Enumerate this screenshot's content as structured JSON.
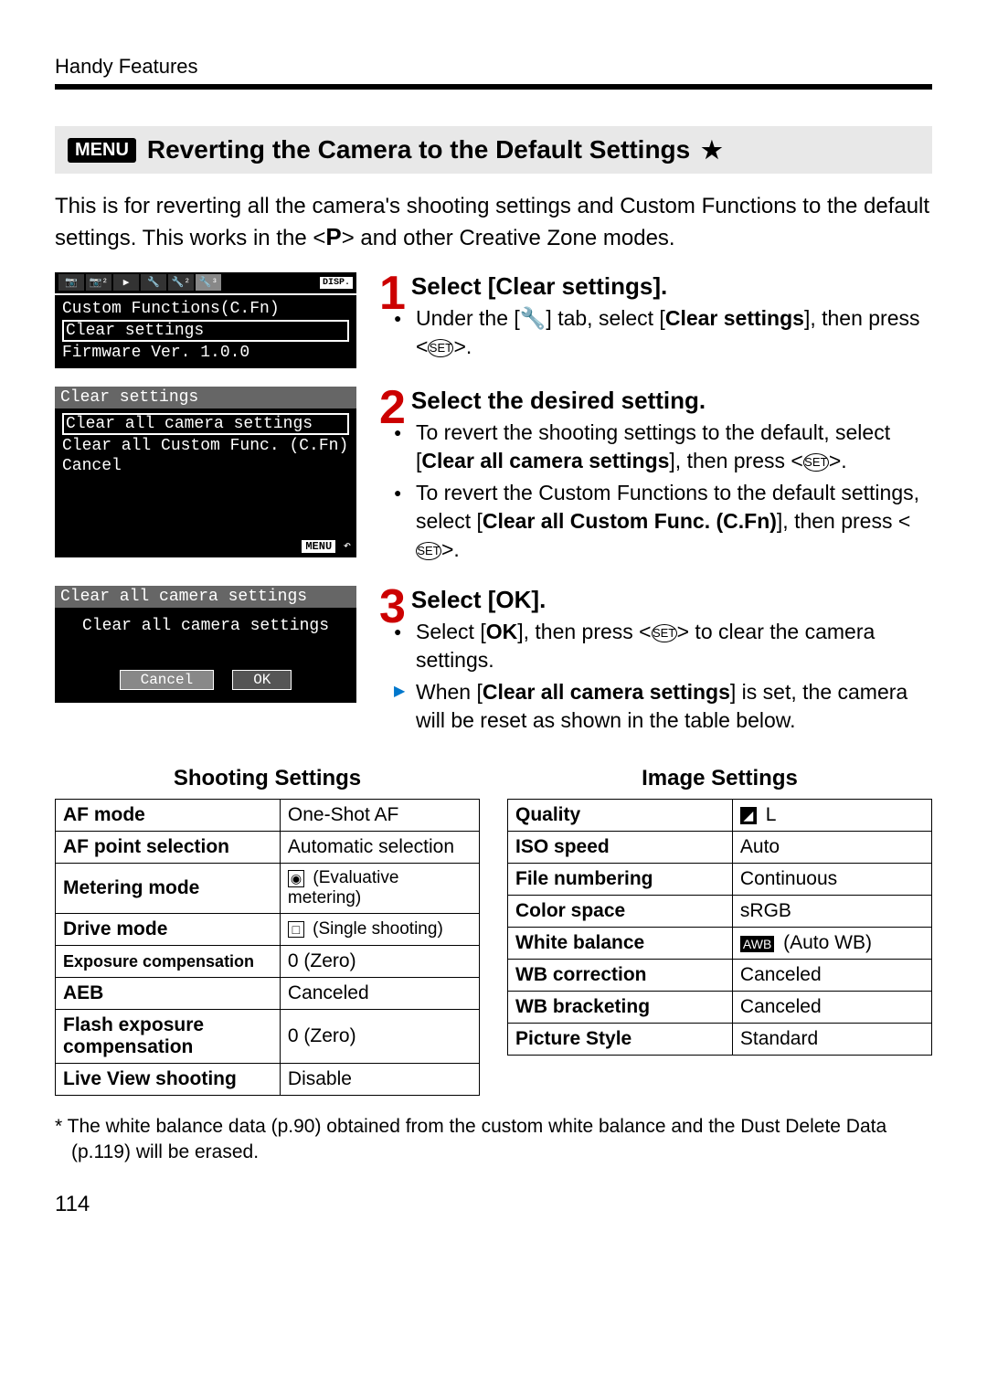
{
  "header": {
    "section": "Handy Features"
  },
  "title": {
    "menu_badge": "MENU",
    "text": "Reverting the Camera to the Default Settings",
    "star": "★"
  },
  "intro": {
    "line1": "This is for reverting all the camera's shooting settings and Custom Functions to the default settings. This works in the <",
    "p": "P",
    "line2": "> and other Creative Zone modes."
  },
  "lcd1": {
    "disp": "DISP.",
    "lines": [
      "Custom Functions(C.Fn)",
      "Clear settings",
      "Firmware Ver. 1.0.0"
    ],
    "selected_index": 1
  },
  "lcd2": {
    "title": "Clear settings",
    "lines": [
      "Clear all camera settings",
      "Clear all Custom Func. (C.Fn)",
      "Cancel"
    ],
    "selected_index": 0,
    "footer_badge": "MENU",
    "footer_icon": "↶"
  },
  "lcd3": {
    "title": "Clear all camera settings",
    "center": "Clear all camera settings",
    "btn_cancel": "Cancel",
    "btn_ok": "OK"
  },
  "steps": [
    {
      "num": "1",
      "head": "Select [Clear settings].",
      "bullets": [
        {
          "type": "dot",
          "html": "Under the [🔧] tab, select [<b>Clear settings</b>], then press <SET>."
        }
      ]
    },
    {
      "num": "2",
      "head": "Select the desired setting.",
      "bullets": [
        {
          "type": "dot",
          "html": "To revert the shooting settings to the default, select [<b>Clear all camera settings</b>], then press <SET>."
        },
        {
          "type": "dot",
          "html": "To revert the Custom Functions to the default settings, select [<b>Clear all Custom Func. (C.Fn)</b>], then press <SET>."
        }
      ]
    },
    {
      "num": "3",
      "head": "Select [OK].",
      "bullets": [
        {
          "type": "dot",
          "html": "Select [<b>OK</b>], then press <SET> to clear the camera settings."
        },
        {
          "type": "arrow",
          "html": "When [<b>Clear all camera settings</b>] is set, the camera will be reset as shown in the table below."
        }
      ]
    }
  ],
  "tables": {
    "left": {
      "title": "Shooting Settings",
      "rows": [
        {
          "k": "AF mode",
          "v": "One-Shot AF"
        },
        {
          "k": "AF point selection",
          "v": "Automatic selection"
        },
        {
          "k": "Metering mode",
          "v_sym": "◉",
          "v_text": "(Evaluative metering)"
        },
        {
          "k": "Drive mode",
          "v_sym": "□",
          "v_text": "(Single shooting)"
        },
        {
          "k": "Exposure compensation",
          "tight": true,
          "v": "0 (Zero)"
        },
        {
          "k": "AEB",
          "v": "Canceled"
        },
        {
          "k": "Flash exposure compensation",
          "v": "0 (Zero)"
        },
        {
          "k": "Live View shooting",
          "v": "Disable"
        }
      ]
    },
    "right": {
      "title": "Image Settings",
      "rows": [
        {
          "k": "Quality",
          "v_sym_fill": "◢",
          "v_text": "L"
        },
        {
          "k": "ISO speed",
          "v": "Auto"
        },
        {
          "k": "File numbering",
          "v": "Continuous"
        },
        {
          "k": "Color space",
          "v": "sRGB"
        },
        {
          "k": "White balance",
          "v_sym_fill": "AWB",
          "v_text": "(Auto WB)"
        },
        {
          "k": "WB correction",
          "v": "Canceled"
        },
        {
          "k": "WB bracketing",
          "v": "Canceled"
        },
        {
          "k": "Picture Style",
          "v": "Standard"
        }
      ]
    }
  },
  "footnote": "* The white balance data (p.90) obtained from the custom white balance and the Dust Delete Data (p.119) will be erased.",
  "pagenum": "114"
}
